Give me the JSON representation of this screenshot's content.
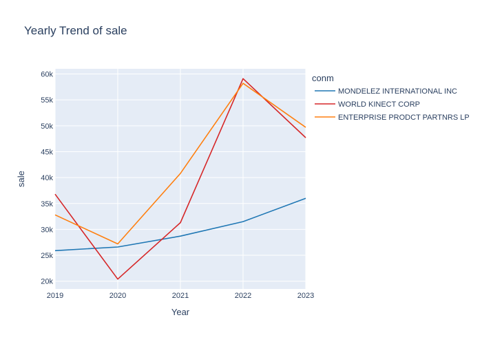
{
  "chart_data": {
    "type": "line",
    "title": "Yearly Trend of sale",
    "xlabel": "Year",
    "ylabel": "sale",
    "x": [
      2019,
      2020,
      2021,
      2022,
      2023
    ],
    "x_tick_labels": [
      "2019",
      "2020",
      "2021",
      "2022",
      "2023"
    ],
    "y_ticks": [
      20000,
      25000,
      30000,
      35000,
      40000,
      45000,
      50000,
      55000,
      60000
    ],
    "y_tick_labels": [
      "20k",
      "25k",
      "30k",
      "35k",
      "40k",
      "45k",
      "50k",
      "55k",
      "60k"
    ],
    "xlim": [
      2019,
      2023
    ],
    "ylim": [
      18500,
      61000
    ],
    "grid": true,
    "legend_title": "conm",
    "legend_position": "right",
    "series": [
      {
        "name": "MONDELEZ INTERNATIONAL INC",
        "color": "#1f77b4",
        "values": [
          25900,
          26600,
          28700,
          31500,
          36000
        ]
      },
      {
        "name": "WORLD KINECT CORP",
        "color": "#d62728",
        "values": [
          36800,
          20400,
          31300,
          59100,
          47700
        ]
      },
      {
        "name": "ENTERPRISE PRODCT PARTNRS LP",
        "color": "#ff7f0e",
        "values": [
          32800,
          27200,
          40800,
          58200,
          49700
        ]
      }
    ]
  }
}
